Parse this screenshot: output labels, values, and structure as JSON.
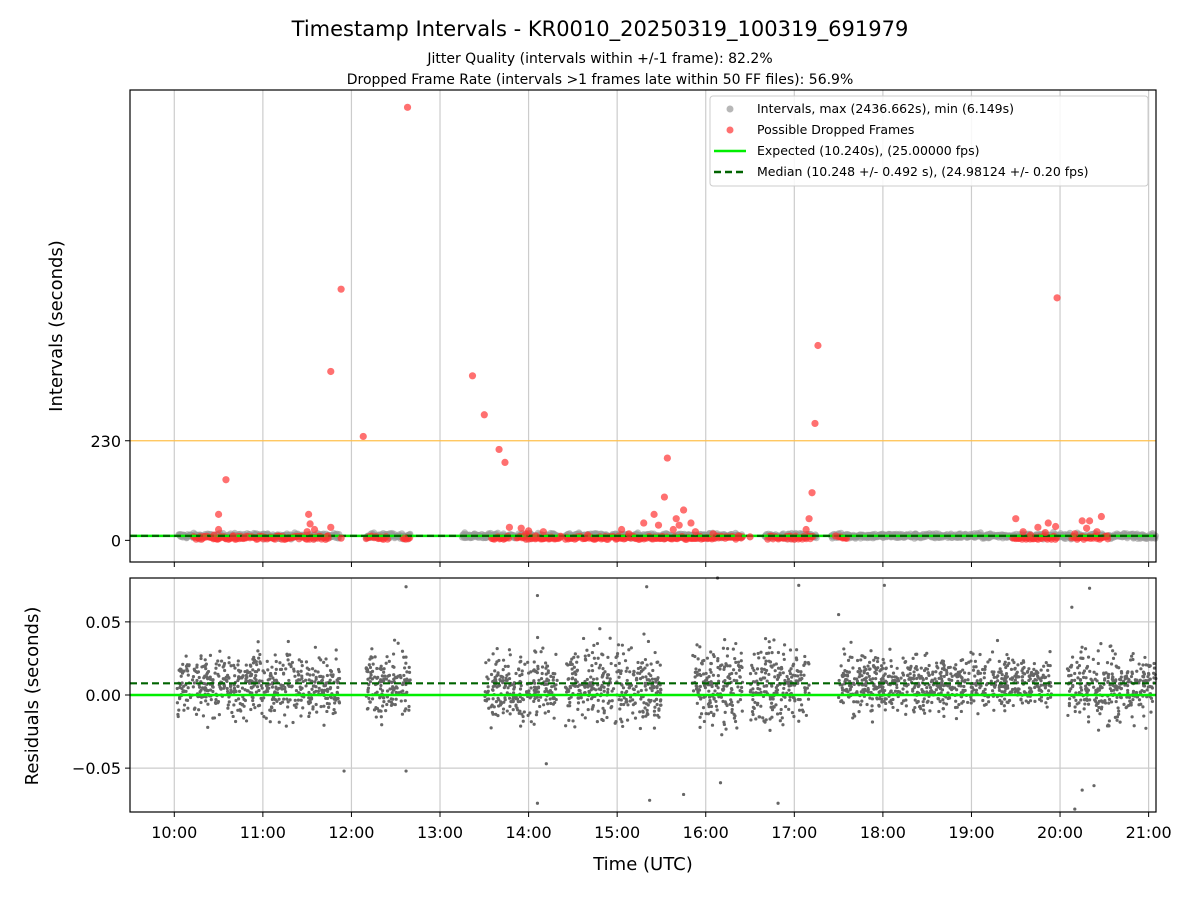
{
  "figure": {
    "title": "Timestamp Intervals - KR0010_20250319_100319_691979",
    "subtitle_1": "Jitter Quality (intervals within +/-1 frame): 82.2%",
    "subtitle_2": "Dropped Frame Rate (intervals >1 frames late within 50 FF files): 56.9%"
  },
  "colors": {
    "intervals": "#999999",
    "dropped": "#ff3333",
    "expected": "#00ee00",
    "median": "#006400",
    "threshold": "#ffc04d",
    "residuals": "#666666",
    "grid": "#cccccc"
  },
  "chart_data": [
    {
      "type": "scatter",
      "panel": "intervals",
      "xlabel": "",
      "ylabel": "Intervals (seconds)",
      "xlim": [
        "09:30",
        "21:05"
      ],
      "ylim": [
        -50,
        1040
      ],
      "x_ticks": [
        "10:00",
        "11:00",
        "12:00",
        "13:00",
        "14:00",
        "15:00",
        "16:00",
        "17:00",
        "18:00",
        "19:00",
        "20:00",
        "21:00"
      ],
      "y_ticks": [
        0,
        230
      ],
      "grid": "vertical",
      "legend_position": "top-right",
      "legend": [
        {
          "label": "Intervals, max (2436.662s), min (6.149s)",
          "kind": "marker",
          "color": "#999999"
        },
        {
          "label": "Possible Dropped Frames",
          "kind": "marker",
          "color": "#ff3333"
        },
        {
          "label": "Expected (10.240s), (25.00000 fps)",
          "kind": "line",
          "color": "#00ee00"
        },
        {
          "label": "Median (10.248 +/- 0.492 s), (24.98124 +/- 0.20 fps)",
          "kind": "dashed",
          "color": "#006400"
        }
      ],
      "expected_value": 10.24,
      "median_value": 10.248,
      "threshold_value": 230,
      "interval_segments": [
        {
          "start": "10:03",
          "end": "10:35"
        },
        {
          "start": "10:35",
          "end": "11:52"
        },
        {
          "start": "12:10",
          "end": "12:40"
        },
        {
          "start": "13:15",
          "end": "14:20"
        },
        {
          "start": "14:25",
          "end": "15:20"
        },
        {
          "start": "15:20",
          "end": "16:25"
        },
        {
          "start": "16:40",
          "end": "17:15"
        },
        {
          "start": "17:25",
          "end": "21:05"
        }
      ],
      "dropped_frames": [
        {
          "time": "10:20",
          "value": 8
        },
        {
          "time": "10:27",
          "value": 12
        },
        {
          "time": "10:30",
          "value": 60
        },
        {
          "time": "10:30",
          "value": 25
        },
        {
          "time": "10:35",
          "value": 140
        },
        {
          "time": "10:40",
          "value": 10
        },
        {
          "time": "10:48",
          "value": 8
        },
        {
          "time": "11:30",
          "value": 20
        },
        {
          "time": "11:31",
          "value": 60
        },
        {
          "time": "11:32",
          "value": 38
        },
        {
          "time": "11:35",
          "value": 25
        },
        {
          "time": "11:44",
          "value": 10
        },
        {
          "time": "11:46",
          "value": 30
        },
        {
          "time": "11:46",
          "value": 390
        },
        {
          "time": "11:53",
          "value": 580
        },
        {
          "time": "11:53",
          "value": 5
        },
        {
          "time": "12:08",
          "value": 240
        },
        {
          "time": "12:36",
          "value": 5
        },
        {
          "time": "12:38",
          "value": 1000
        },
        {
          "time": "13:22",
          "value": 380
        },
        {
          "time": "13:30",
          "value": 290
        },
        {
          "time": "13:40",
          "value": 210
        },
        {
          "time": "13:44",
          "value": 180
        },
        {
          "time": "13:47",
          "value": 30
        },
        {
          "time": "13:55",
          "value": 28
        },
        {
          "time": "13:58",
          "value": 15
        },
        {
          "time": "14:00",
          "value": 22
        },
        {
          "time": "14:05",
          "value": 10
        },
        {
          "time": "14:10",
          "value": 20
        },
        {
          "time": "14:22",
          "value": 8
        },
        {
          "time": "14:40",
          "value": 12
        },
        {
          "time": "15:03",
          "value": 25
        },
        {
          "time": "15:08",
          "value": 15
        },
        {
          "time": "15:18",
          "value": 40
        },
        {
          "time": "15:25",
          "value": 60
        },
        {
          "time": "15:28",
          "value": 35
        },
        {
          "time": "15:32",
          "value": 100
        },
        {
          "time": "15:34",
          "value": 190
        },
        {
          "time": "15:38",
          "value": 25
        },
        {
          "time": "15:40",
          "value": 50
        },
        {
          "time": "15:42",
          "value": 35
        },
        {
          "time": "15:45",
          "value": 70
        },
        {
          "time": "15:50",
          "value": 40
        },
        {
          "time": "15:53",
          "value": 20
        },
        {
          "time": "16:05",
          "value": 15
        },
        {
          "time": "16:22",
          "value": 10
        },
        {
          "time": "16:30",
          "value": 8
        },
        {
          "time": "17:08",
          "value": 25
        },
        {
          "time": "17:10",
          "value": 50
        },
        {
          "time": "17:12",
          "value": 110
        },
        {
          "time": "17:14",
          "value": 270
        },
        {
          "time": "17:16",
          "value": 450
        },
        {
          "time": "17:28",
          "value": 10
        },
        {
          "time": "19:30",
          "value": 50
        },
        {
          "time": "19:35",
          "value": 20
        },
        {
          "time": "19:40",
          "value": 12
        },
        {
          "time": "19:45",
          "value": 30
        },
        {
          "time": "19:50",
          "value": 18
        },
        {
          "time": "19:52",
          "value": 40
        },
        {
          "time": "19:57",
          "value": 32
        },
        {
          "time": "19:58",
          "value": 560
        },
        {
          "time": "20:10",
          "value": 15
        },
        {
          "time": "20:15",
          "value": 45
        },
        {
          "time": "20:18",
          "value": 28
        },
        {
          "time": "20:20",
          "value": 45
        },
        {
          "time": "20:25",
          "value": 20
        },
        {
          "time": "20:28",
          "value": 55
        },
        {
          "time": "20:32",
          "value": 10
        }
      ],
      "dropped_runs": [
        {
          "start": "10:13",
          "end": "10:35"
        },
        {
          "start": "10:35",
          "end": "11:45"
        },
        {
          "start": "12:10",
          "end": "12:25"
        },
        {
          "start": "12:35",
          "end": "12:40"
        },
        {
          "start": "13:35",
          "end": "13:47"
        },
        {
          "start": "13:52",
          "end": "14:22"
        },
        {
          "start": "14:25",
          "end": "15:30"
        },
        {
          "start": "15:30",
          "end": "16:25"
        },
        {
          "start": "16:42",
          "end": "17:13"
        },
        {
          "start": "17:30",
          "end": "17:36"
        },
        {
          "start": "19:28",
          "end": "19:58"
        },
        {
          "start": "20:08",
          "end": "20:33"
        }
      ]
    },
    {
      "type": "scatter",
      "panel": "residuals",
      "xlabel": "Time (UTC)",
      "ylabel": "Residuals (seconds)",
      "xlim": [
        "09:30",
        "21:05"
      ],
      "ylim": [
        -0.08,
        0.08
      ],
      "x_ticks": [
        "10:00",
        "11:00",
        "12:00",
        "13:00",
        "14:00",
        "15:00",
        "16:00",
        "17:00",
        "18:00",
        "19:00",
        "20:00",
        "21:00"
      ],
      "y_ticks": [
        "0.05",
        "0.00",
        "−0.05"
      ],
      "y_tick_values": [
        0.05,
        0.0,
        -0.05
      ],
      "grid": "both",
      "expected_value": 0.0,
      "median_value": 0.008,
      "residual_clusters": [
        {
          "start": "10:02",
          "end": "11:52",
          "center": 0.006,
          "spread": 0.018
        },
        {
          "start": "12:10",
          "end": "12:40",
          "center": 0.008,
          "spread": 0.018
        },
        {
          "start": "13:30",
          "end": "14:20",
          "center": 0.005,
          "spread": 0.02
        },
        {
          "start": "14:25",
          "end": "15:30",
          "center": 0.006,
          "spread": 0.022
        },
        {
          "start": "15:50",
          "end": "16:25",
          "center": 0.008,
          "spread": 0.022
        },
        {
          "start": "16:30",
          "end": "17:10",
          "center": 0.006,
          "spread": 0.022
        },
        {
          "start": "17:30",
          "end": "19:55",
          "center": 0.008,
          "spread": 0.016
        },
        {
          "start": "20:05",
          "end": "21:05",
          "center": 0.006,
          "spread": 0.02
        }
      ],
      "residual_outliers": [
        {
          "time": "11:55",
          "value": -0.052
        },
        {
          "time": "12:37",
          "value": 0.074
        },
        {
          "time": "12:37",
          "value": -0.052
        },
        {
          "time": "14:06",
          "value": 0.068
        },
        {
          "time": "14:06",
          "value": -0.074
        },
        {
          "time": "14:12",
          "value": -0.047
        },
        {
          "time": "15:20",
          "value": 0.074
        },
        {
          "time": "15:22",
          "value": -0.072
        },
        {
          "time": "15:45",
          "value": -0.068
        },
        {
          "time": "16:08",
          "value": 0.08
        },
        {
          "time": "16:10",
          "value": -0.06
        },
        {
          "time": "16:49",
          "value": -0.074
        },
        {
          "time": "17:03",
          "value": 0.075
        },
        {
          "time": "17:30",
          "value": 0.055
        },
        {
          "time": "18:01",
          "value": 0.075
        },
        {
          "time": "20:08",
          "value": 0.06
        },
        {
          "time": "20:10",
          "value": -0.078
        },
        {
          "time": "20:20",
          "value": 0.073
        },
        {
          "time": "20:23",
          "value": -0.062
        },
        {
          "time": "20:15",
          "value": -0.065
        }
      ]
    }
  ]
}
